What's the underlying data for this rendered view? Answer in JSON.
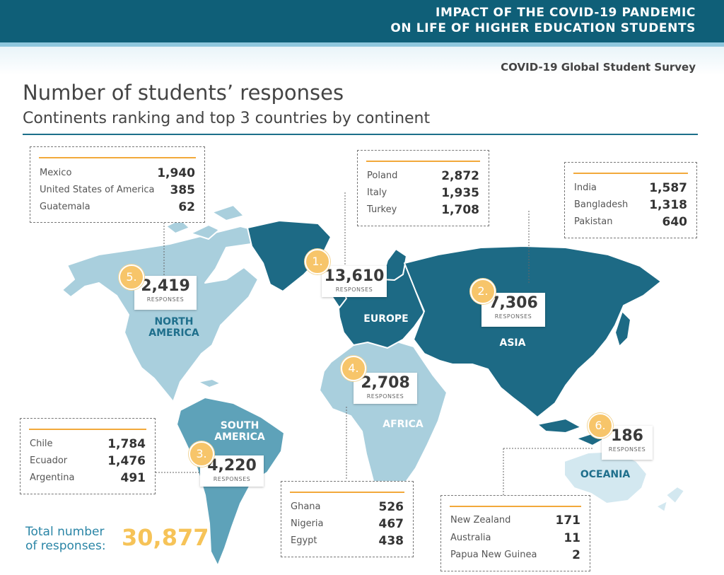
{
  "header": {
    "banner_line1": "IMPACT OF THE COVID-19 PANDEMIC",
    "banner_line2": "ON LIFE OF HIGHER EDUCATION STUDENTS",
    "survey": "COVID-19 Global Student Survey",
    "title": "Number of students’ responses",
    "subtitle": "Continents ranking and top 3 countries by continent"
  },
  "response_label": "RESPONSES",
  "colors": {
    "dark": "#1d6a85",
    "mid": "#5ea2b9",
    "light": "#a9cfdd",
    "pale": "#d3e8f0",
    "accent": "#f6c358"
  },
  "continents": {
    "europe": {
      "rank": "1.",
      "label": "EUROPE",
      "responses": "13,610",
      "countries": [
        {
          "name": "Poland",
          "value": "2,872"
        },
        {
          "name": "Italy",
          "value": "1,935"
        },
        {
          "name": "Turkey",
          "value": "1,708"
        }
      ]
    },
    "asia": {
      "rank": "2.",
      "label": "ASIA",
      "responses": "7,306",
      "countries": [
        {
          "name": "India",
          "value": "1,587"
        },
        {
          "name": "Bangladesh",
          "value": "1,318"
        },
        {
          "name": "Pakistan",
          "value": "640"
        }
      ]
    },
    "south_america": {
      "rank": "3.",
      "label_line1": "SOUTH",
      "label_line2": "AMERICA",
      "responses": "4,220",
      "countries": [
        {
          "name": "Chile",
          "value": "1,784"
        },
        {
          "name": "Ecuador",
          "value": "1,476"
        },
        {
          "name": "Argentina",
          "value": "491"
        }
      ]
    },
    "africa": {
      "rank": "4.",
      "label": "AFRICA",
      "responses": "2,708",
      "countries": [
        {
          "name": "Ghana",
          "value": "526"
        },
        {
          "name": "Nigeria",
          "value": "467"
        },
        {
          "name": "Egypt",
          "value": "438"
        }
      ]
    },
    "north_america": {
      "rank": "5.",
      "label_line1": "NORTH",
      "label_line2": "AMERICA",
      "responses": "2,419",
      "countries": [
        {
          "name": "Mexico",
          "value": "1,940"
        },
        {
          "name": "United States of America",
          "value": "385"
        },
        {
          "name": "Guatemala",
          "value": "62"
        }
      ]
    },
    "oceania": {
      "rank": "6.",
      "label": "OCEANIA",
      "responses": "186",
      "countries": [
        {
          "name": "New Zealand",
          "value": "171"
        },
        {
          "name": "Australia",
          "value": "11"
        },
        {
          "name": "Papua New Guinea",
          "value": "2"
        }
      ]
    }
  },
  "total": {
    "label_line1": "Total number",
    "label_line2": "of responses:",
    "value": "30,877"
  }
}
